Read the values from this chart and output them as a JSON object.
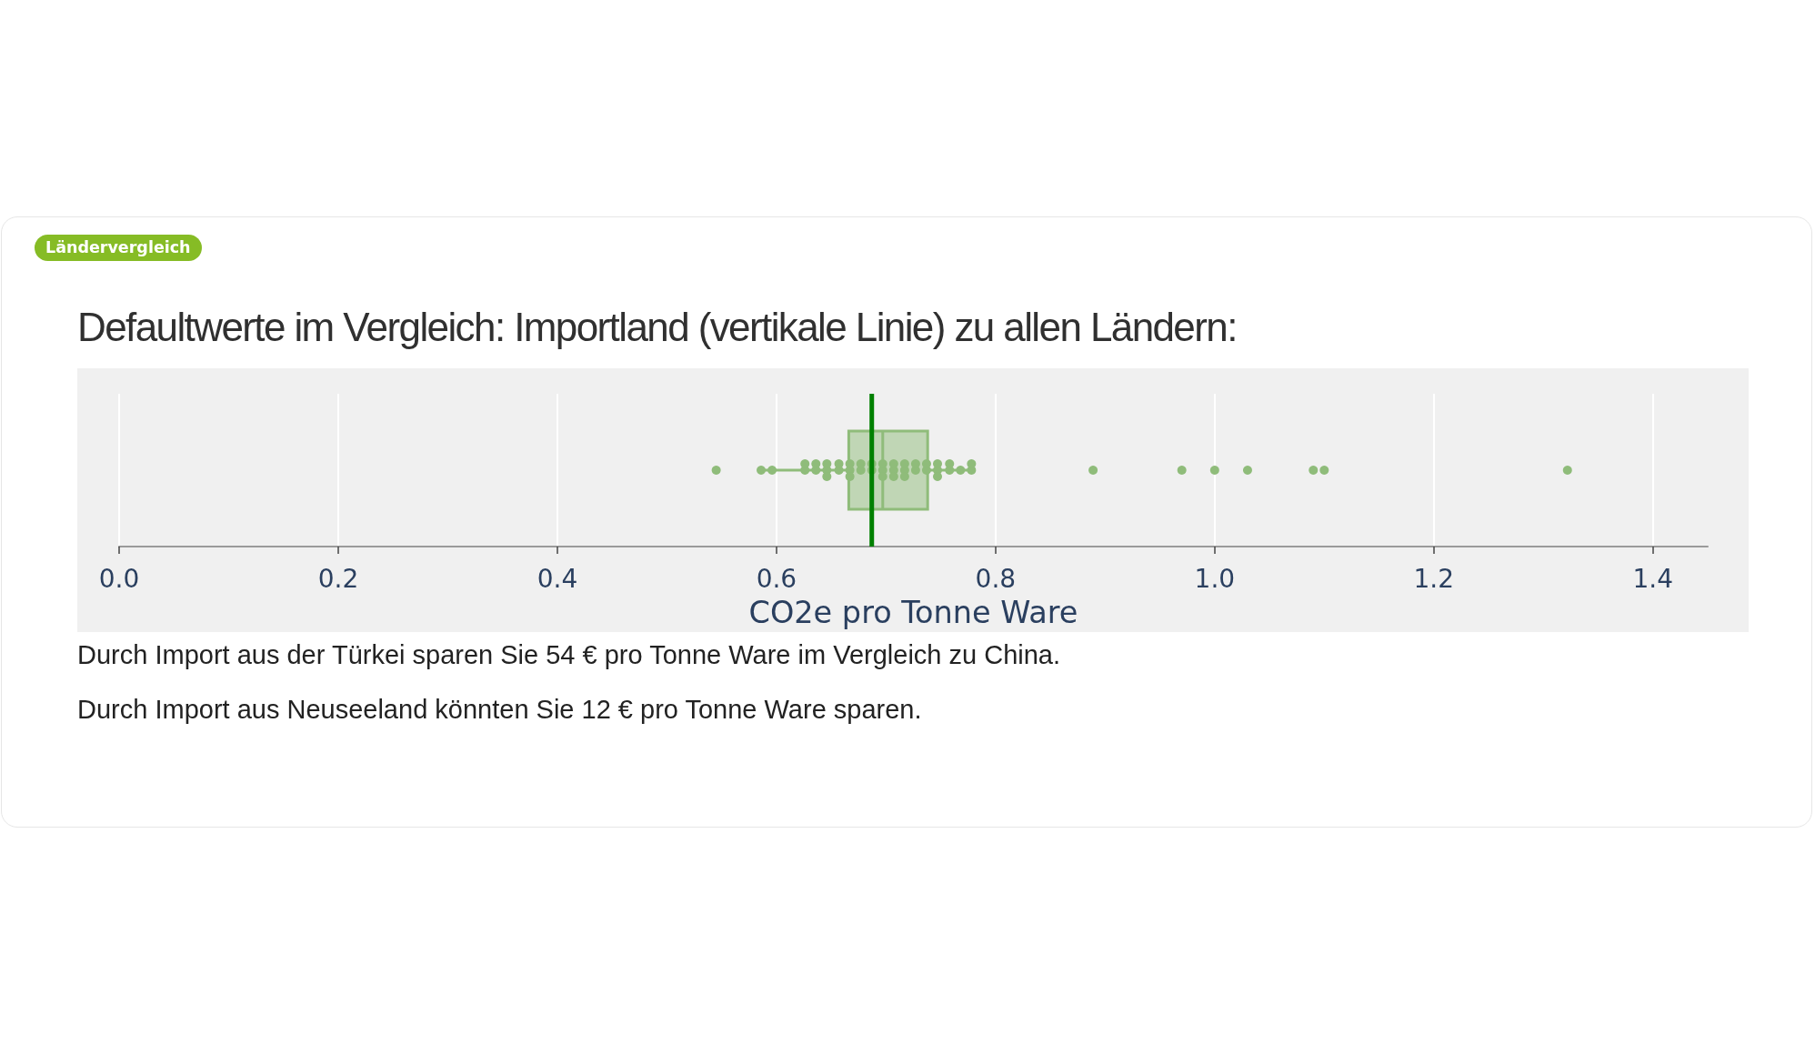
{
  "chart_data": {
    "type": "box",
    "title": "Defaultwerte im Vergleich: Importland (vertikale Linie) zu allen Ländern:",
    "xlabel": "CO2e pro Tonne Ware",
    "orientation": "horizontal",
    "categories": [
      null
    ],
    "series": [
      {
        "color": "#8fbc7a",
        "boxes": [
          {
            "low": 0.586,
            "q1": 0.666,
            "median": 0.697,
            "q3": 0.738,
            "high": 0.778
          }
        ]
      },
      {
        "type": "scatter",
        "color": "#8fbc7a",
        "x": [
          null,
          null,
          null,
          null,
          null,
          null,
          null,
          null,
          null,
          null,
          null,
          null,
          null,
          null,
          null,
          null,
          null,
          null,
          null,
          null,
          null,
          null,
          null,
          null,
          null,
          null,
          null,
          null,
          null,
          null,
          null,
          null,
          null,
          null,
          null,
          null,
          null,
          null,
          null,
          null,
          null,
          null,
          null,
          null,
          null,
          null,
          null
        ],
        "values": [
          0.545,
          0.586,
          0.596,
          0.626,
          0.626,
          0.636,
          0.636,
          0.646,
          0.646,
          0.646,
          0.657,
          0.657,
          0.667,
          0.667,
          0.667,
          0.677,
          0.677,
          0.687,
          0.687,
          0.697,
          0.697,
          0.697,
          0.707,
          0.707,
          0.707,
          0.717,
          0.717,
          0.717,
          0.727,
          0.727,
          0.737,
          0.737,
          0.747,
          0.747,
          0.747,
          0.758,
          0.758,
          0.768,
          0.778,
          0.778,
          0.889,
          0.97,
          1.0,
          1.03,
          1.09,
          1.1,
          1.322
        ]
      }
    ],
    "xlim": [
      0,
      1.45
    ],
    "xticks": [
      {
        "value": 0,
        "label": "0.0"
      },
      0.2,
      0.4,
      0.6,
      0.8,
      {
        "value": 1,
        "label": "1.0"
      },
      1.2,
      1.4
    ],
    "grid": "x",
    "marker": "circle",
    "ref_lines": [
      {
        "axis": "x",
        "value": 0.687,
        "color": "#008000"
      }
    ],
    "annotations": [
      "Ländervergleich",
      "Durch Import aus der Türkei sparen Sie 54 € pro Tonne Ware im Vergleich zu China.",
      "Durch Import aus Neuseeland könnten Sie 12 € pro Tonne Ware sparen."
    ]
  }
}
